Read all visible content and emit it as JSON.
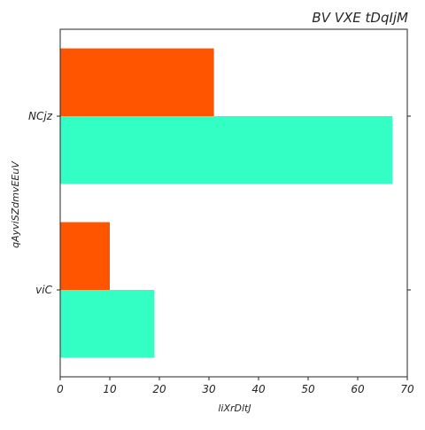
{
  "chart_data": {
    "type": "bar",
    "orientation": "horizontal",
    "title": "BV VXE tDqIjM",
    "xlabel": "liXrDltJ",
    "ylabel": "qAyviSZdmvEEuV",
    "categories": [
      "NCjz",
      "viC"
    ],
    "series": [
      {
        "color": "#ff5500",
        "values": [
          31,
          10
        ]
      },
      {
        "color": "#33ffc4",
        "values": [
          67,
          19
        ]
      }
    ],
    "xlim": [
      0,
      70
    ],
    "xticks": [
      0,
      10,
      20,
      30,
      40,
      50,
      60,
      70
    ],
    "grid": false,
    "legend": "none"
  }
}
